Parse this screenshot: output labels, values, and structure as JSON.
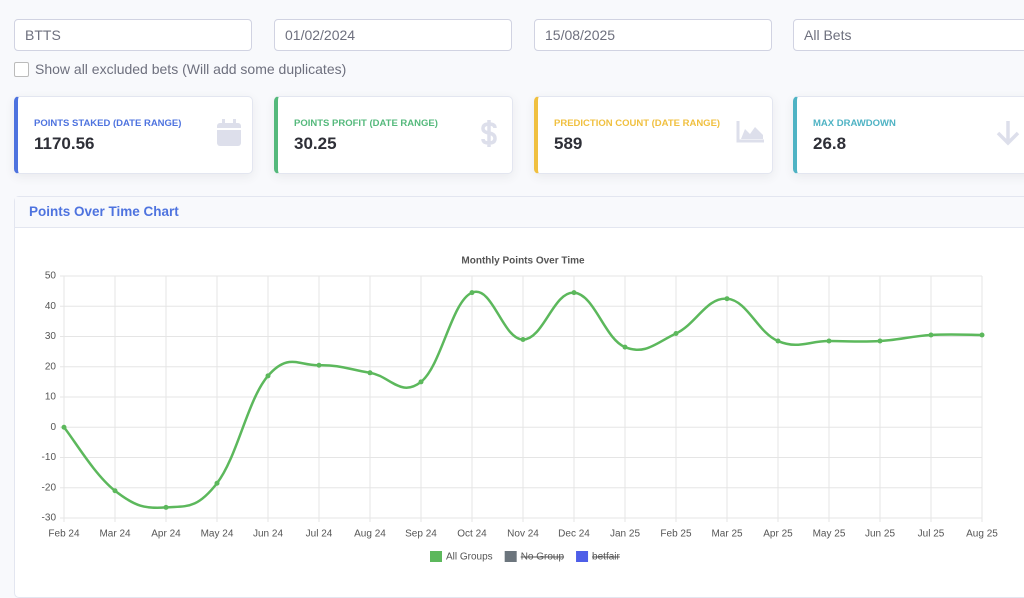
{
  "filters": {
    "market": "BTTS",
    "date_from": "01/02/2024",
    "date_to": "15/08/2025",
    "bet_type": "All Bets",
    "checkbox_label": "Show all excluded bets (Will add some duplicates)"
  },
  "cards": [
    {
      "label": "POINTS STAKED (DATE RANGE)",
      "value": 1170.56,
      "color": "#4e73df"
    },
    {
      "label": "POINTS PROFIT (DATE RANGE)",
      "value": 30.25,
      "color": "#55b97c"
    },
    {
      "label": "PREDICTION COUNT (DATE RANGE)",
      "value": 589,
      "color": "#f0c040"
    },
    {
      "label": "MAX DRAWDOWN",
      "value": 26.8,
      "color": "#4fb3c4"
    }
  ],
  "panel": {
    "title": "Points Over Time Chart"
  },
  "chart_data": {
    "type": "line",
    "title": "Monthly Points Over Time",
    "categories": [
      "Feb 24",
      "Mar 24",
      "Apr 24",
      "May 24",
      "Jun 24",
      "Jul 24",
      "Aug 24",
      "Sep 24",
      "Oct 24",
      "Nov 24",
      "Dec 24",
      "Jan 25",
      "Feb 25",
      "Mar 25",
      "Apr 25",
      "May 25",
      "Jun 25",
      "Jul 25",
      "Aug 25"
    ],
    "series": [
      {
        "name": "All Groups",
        "color": "#5cb85c",
        "values": [
          0,
          -21,
          -26.5,
          -18.5,
          17,
          20.5,
          18,
          15,
          44.5,
          29,
          44.5,
          26.5,
          31,
          42.5,
          28.5,
          28.5,
          28.5,
          30.5,
          30.5
        ]
      },
      {
        "name": "No Group",
        "color": "#6c757d",
        "hidden": true
      },
      {
        "name": "betfair",
        "color": "#4e5ee8",
        "hidden": true
      }
    ],
    "ylim": [
      -30,
      50
    ],
    "yticks": [
      -30,
      -20,
      -10,
      0,
      10,
      20,
      30,
      40,
      50
    ],
    "grid": true
  }
}
